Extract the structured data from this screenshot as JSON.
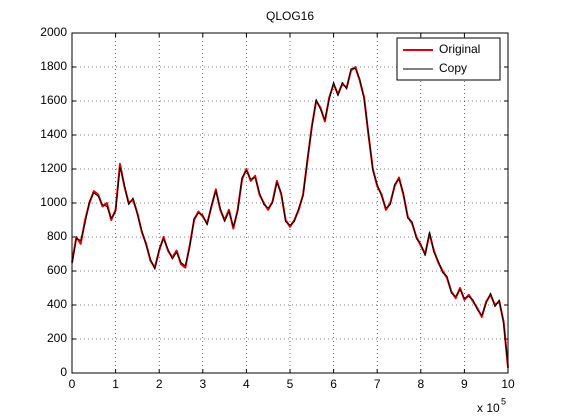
{
  "chart_data": {
    "type": "line",
    "title": "QLOG16",
    "x_multiplier": {
      "base": "x 10",
      "exponent": "5"
    },
    "x": [
      0,
      0.1,
      0.2,
      0.3,
      0.4,
      0.5,
      0.6,
      0.7,
      0.8,
      0.9,
      1,
      1.1,
      1.2,
      1.3,
      1.4,
      1.5,
      1.6,
      1.7,
      1.8,
      1.9,
      2,
      2.1,
      2.2,
      2.3,
      2.4,
      2.5,
      2.6,
      2.7,
      2.8,
      2.9,
      3,
      3.1,
      3.2,
      3.3,
      3.4,
      3.5,
      3.6,
      3.7,
      3.8,
      3.9,
      4,
      4.1,
      4.2,
      4.3,
      4.4,
      4.5,
      4.6,
      4.7,
      4.8,
      4.9,
      5,
      5.1,
      5.2,
      5.3,
      5.4,
      5.5,
      5.6,
      5.7,
      5.8,
      5.9,
      6,
      6.1,
      6.2,
      6.3,
      6.4,
      6.5,
      6.6,
      6.7,
      6.8,
      6.9,
      7,
      7.1,
      7.2,
      7.3,
      7.4,
      7.5,
      7.6,
      7.7,
      7.8,
      7.9,
      8,
      8.1,
      8.2,
      8.3,
      8.4,
      8.5,
      8.6,
      8.7,
      8.8,
      8.9,
      9,
      9.1,
      9.2,
      9.3,
      9.4,
      9.5,
      9.6,
      9.7,
      9.8,
      9.9,
      10
    ],
    "series": [
      {
        "name": "Original",
        "color": "#e00000",
        "width": 2,
        "values": [
          650,
          800,
          760,
          900,
          1000,
          1070,
          1050,
          980,
          1000,
          900,
          960,
          1230,
          1100,
          1000,
          1020,
          940,
          830,
          760,
          660,
          620,
          720,
          800,
          720,
          680,
          720,
          640,
          620,
          750,
          900,
          950,
          920,
          880,
          980,
          1080,
          960,
          900,
          960,
          850,
          960,
          1140,
          1200,
          1130,
          1160,
          1050,
          1000,
          960,
          1010,
          1130,
          1050,
          900,
          860,
          900,
          960,
          1050,
          1250,
          1450,
          1600,
          1560,
          1480,
          1620,
          1700,
          1640,
          1700,
          1680,
          1780,
          1800,
          1720,
          1620,
          1400,
          1200,
          1100,
          1050,
          960,
          1000,
          1100,
          1150,
          1050,
          920,
          880,
          800,
          750,
          700,
          820,
          720,
          650,
          600,
          560,
          480,
          440,
          500,
          430,
          460,
          420,
          380,
          330,
          420,
          460,
          400,
          420,
          300,
          30
        ]
      },
      {
        "name": "Copy",
        "color": "#000000",
        "width": 1,
        "values": [
          640,
          790,
          780,
          880,
          1010,
          1060,
          1040,
          990,
          980,
          910,
          950,
          1210,
          1110,
          990,
          1030,
          930,
          840,
          750,
          670,
          610,
          730,
          790,
          730,
          670,
          710,
          650,
          630,
          740,
          910,
          940,
          930,
          870,
          990,
          1070,
          970,
          890,
          950,
          860,
          950,
          1150,
          1190,
          1140,
          1150,
          1060,
          990,
          970,
          1000,
          1120,
          1060,
          890,
          870,
          890,
          970,
          1040,
          1260,
          1440,
          1610,
          1550,
          1490,
          1610,
          1710,
          1630,
          1710,
          1670,
          1790,
          1790,
          1730,
          1610,
          1410,
          1190,
          1110,
          1040,
          970,
          990,
          1110,
          1140,
          1060,
          910,
          890,
          790,
          760,
          690,
          830,
          710,
          660,
          590,
          570,
          470,
          450,
          490,
          440,
          450,
          430,
          370,
          340,
          410,
          470,
          390,
          430,
          290,
          40
        ]
      }
    ],
    "xlim": [
      0,
      10
    ],
    "xticks": [
      0,
      1,
      2,
      3,
      4,
      5,
      6,
      7,
      8,
      9,
      10
    ],
    "ylim": [
      0,
      2000
    ],
    "yticks": [
      0,
      200,
      400,
      600,
      800,
      1000,
      1200,
      1400,
      1600,
      1800,
      2000
    ],
    "grid": true,
    "legend": "upper right"
  }
}
